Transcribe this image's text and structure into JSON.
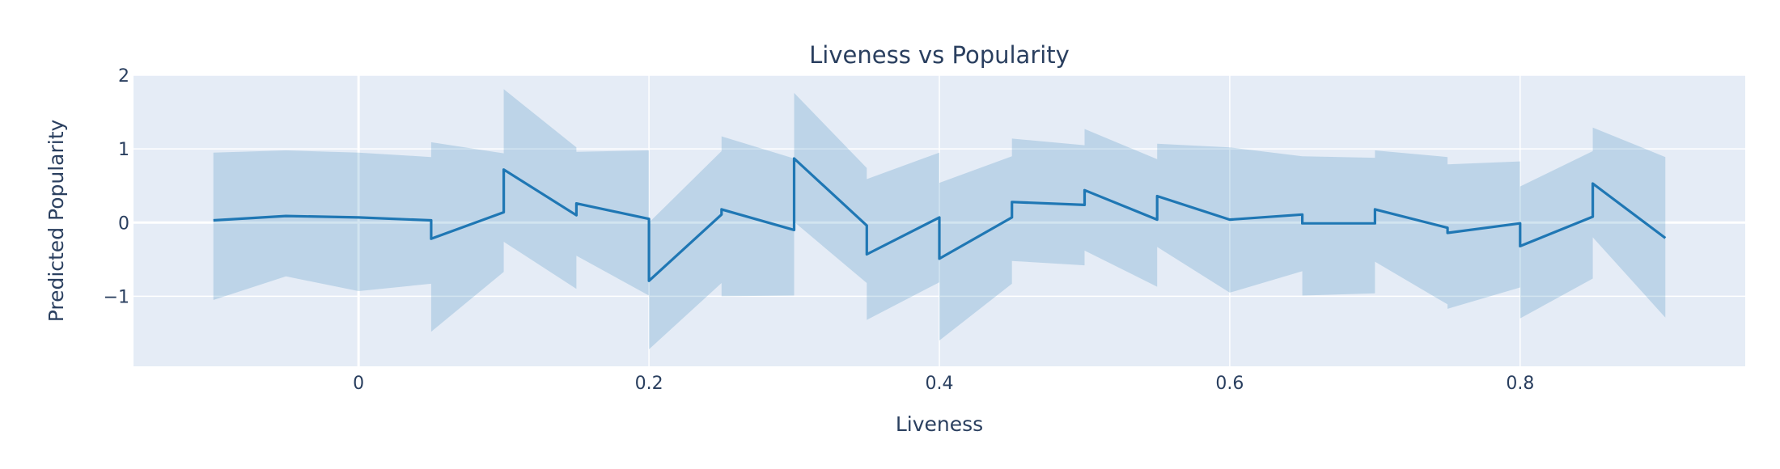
{
  "chart_data": {
    "type": "line",
    "title": "Liveness vs Popularity",
    "xlabel": "Liveness",
    "ylabel": "Predicted Popularity",
    "xlim": [
      -0.155,
      0.955
    ],
    "ylim": [
      -1.95,
      2.0
    ],
    "xticks": [
      0,
      0.2,
      0.4,
      0.6,
      0.8
    ],
    "xtick_labels": [
      "0",
      "0.2",
      "0.4",
      "0.6",
      "0.8"
    ],
    "yticks": [
      -1,
      0,
      1,
      2
    ],
    "ytick_labels": [
      "−1",
      "0",
      "1",
      "2"
    ],
    "grid": true,
    "legend": "none",
    "colors": {
      "line": "#1f77b4",
      "band": "rgba(31,119,180,0.2)",
      "plot_bg": "#e5ecf6",
      "grid": "#ffffff",
      "text": "#2a3f5f"
    },
    "series": [
      {
        "points": [
          {
            "x": -0.1,
            "y": 0.03,
            "upper": 0.95,
            "lower": -1.05
          },
          {
            "x": -0.05,
            "y": 0.09,
            "upper": 0.98,
            "lower": -0.73
          },
          {
            "x": 0.0,
            "y": 0.07,
            "upper": 0.95,
            "lower": -0.93
          },
          {
            "x": 0.05,
            "y": 0.03,
            "upper": 0.89,
            "lower": -0.83
          },
          {
            "x": 0.05,
            "y": -0.22,
            "upper": 1.09,
            "lower": -1.48
          },
          {
            "x": 0.1,
            "y": 0.14,
            "upper": 0.94,
            "lower": -0.67
          },
          {
            "x": 0.1,
            "y": 0.72,
            "upper": 1.81,
            "lower": -0.26
          },
          {
            "x": 0.15,
            "y": 0.1,
            "upper": 1.02,
            "lower": -0.9
          },
          {
            "x": 0.15,
            "y": 0.26,
            "upper": 0.96,
            "lower": -0.45
          },
          {
            "x": 0.2,
            "y": 0.05,
            "upper": 0.98,
            "lower": -0.99
          },
          {
            "x": 0.2,
            "y": -0.79,
            "upper": 0.0,
            "lower": -1.72
          },
          {
            "x": 0.25,
            "y": 0.11,
            "upper": 0.97,
            "lower": -0.82
          },
          {
            "x": 0.25,
            "y": 0.18,
            "upper": 1.17,
            "lower": -1.0
          },
          {
            "x": 0.3,
            "y": -0.1,
            "upper": 0.87,
            "lower": -0.99
          },
          {
            "x": 0.3,
            "y": 0.87,
            "upper": 1.76,
            "lower": 0.01
          },
          {
            "x": 0.35,
            "y": -0.04,
            "upper": 0.74,
            "lower": -0.82
          },
          {
            "x": 0.35,
            "y": -0.43,
            "upper": 0.59,
            "lower": -1.32
          },
          {
            "x": 0.4,
            "y": 0.07,
            "upper": 0.95,
            "lower": -0.81
          },
          {
            "x": 0.4,
            "y": -0.49,
            "upper": 0.54,
            "lower": -1.6
          },
          {
            "x": 0.45,
            "y": 0.07,
            "upper": 0.9,
            "lower": -0.83
          },
          {
            "x": 0.45,
            "y": 0.28,
            "upper": 1.14,
            "lower": -0.52
          },
          {
            "x": 0.5,
            "y": 0.24,
            "upper": 1.05,
            "lower": -0.58
          },
          {
            "x": 0.5,
            "y": 0.44,
            "upper": 1.27,
            "lower": -0.38
          },
          {
            "x": 0.55,
            "y": 0.04,
            "upper": 0.86,
            "lower": -0.87
          },
          {
            "x": 0.55,
            "y": 0.36,
            "upper": 1.07,
            "lower": -0.33
          },
          {
            "x": 0.6,
            "y": 0.04,
            "upper": 1.02,
            "lower": -0.95
          },
          {
            "x": 0.65,
            "y": 0.11,
            "upper": 0.9,
            "lower": -0.66
          },
          {
            "x": 0.65,
            "y": -0.01,
            "upper": 0.9,
            "lower": -0.99
          },
          {
            "x": 0.7,
            "y": -0.01,
            "upper": 0.88,
            "lower": -0.96
          },
          {
            "x": 0.7,
            "y": 0.18,
            "upper": 0.98,
            "lower": -0.53
          },
          {
            "x": 0.75,
            "y": -0.07,
            "upper": 0.89,
            "lower": -1.11
          },
          {
            "x": 0.75,
            "y": -0.14,
            "upper": 0.79,
            "lower": -1.17
          },
          {
            "x": 0.8,
            "y": -0.01,
            "upper": 0.83,
            "lower": -0.88
          },
          {
            "x": 0.8,
            "y": -0.32,
            "upper": 0.49,
            "lower": -1.3
          },
          {
            "x": 0.85,
            "y": 0.08,
            "upper": 0.97,
            "lower": -0.76
          },
          {
            "x": 0.85,
            "y": 0.53,
            "upper": 1.29,
            "lower": -0.2
          },
          {
            "x": 0.9,
            "y": -0.21,
            "upper": 0.89,
            "lower": -1.29
          }
        ]
      }
    ]
  }
}
